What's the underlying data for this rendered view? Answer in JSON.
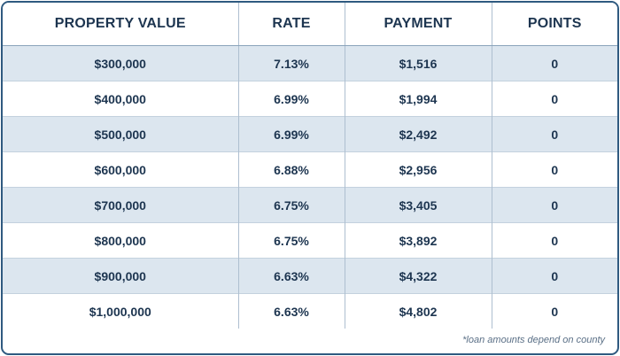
{
  "table": {
    "headers": {
      "property_value": "PROPERTY VALUE",
      "rate": "RATE",
      "payment": "PAYMENT",
      "points": "POINTS"
    },
    "rows": [
      {
        "property_value": "$300,000",
        "rate": "7.13%",
        "payment": "$1,516",
        "points": "0"
      },
      {
        "property_value": "$400,000",
        "rate": "6.99%",
        "payment": "$1,994",
        "points": "0"
      },
      {
        "property_value": "$500,000",
        "rate": "6.99%",
        "payment": "$2,492",
        "points": "0"
      },
      {
        "property_value": "$600,000",
        "rate": "6.88%",
        "payment": "$2,956",
        "points": "0"
      },
      {
        "property_value": "$700,000",
        "rate": "6.75%",
        "payment": "$3,405",
        "points": "0"
      },
      {
        "property_value": "$800,000",
        "rate": "6.75%",
        "payment": "$3,892",
        "points": "0"
      },
      {
        "property_value": "$900,000",
        "rate": "6.63%",
        "payment": "$4,322",
        "points": "0"
      },
      {
        "property_value": "$1,000,000",
        "rate": "6.63%",
        "payment": "$4,802",
        "points": "0"
      }
    ]
  },
  "footnote": "*loan amounts depend on county",
  "colors": {
    "border": "#2f5a80",
    "text": "#1d3550",
    "alt_row": "#dce6ef"
  }
}
